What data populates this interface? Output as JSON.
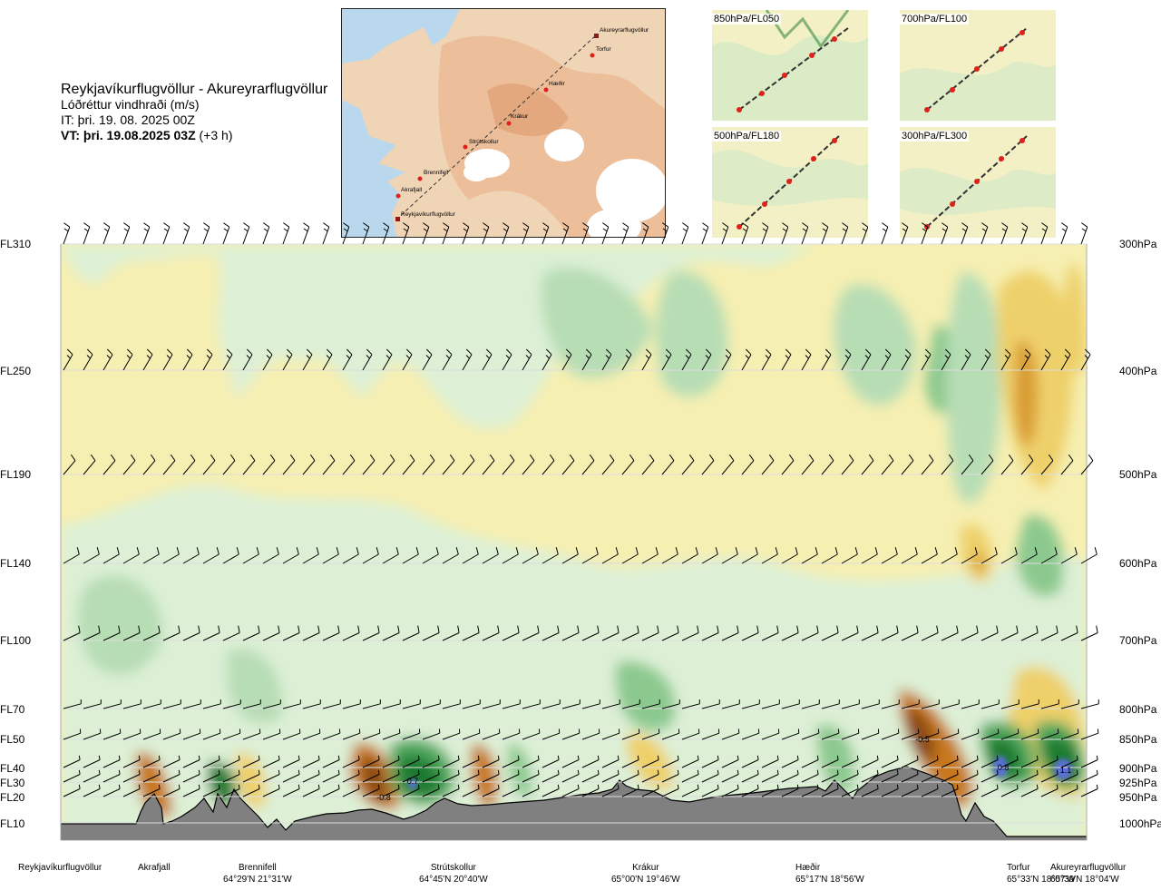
{
  "header": {
    "route": "Reykjavíkurflugvöllur - Akureyrarflugvöllur",
    "parameter": "Lóðréttur vindhraði (m/s)",
    "issue_time": "IT: þri. 19. 08. 2025 00Z",
    "valid_time": "VT: þri. 19.08.2025 03Z",
    "lead": "(+3 h)"
  },
  "map_labels": [
    "Akureyrarflugvöllur",
    "Torfur",
    "Hæðir",
    "Krákur",
    "Strútskollur",
    "Brennifell",
    "Akrafjall",
    "Reykjavíkurflugvöllur"
  ],
  "thumbnails": [
    "850hPa/FL050",
    "700hPa/FL100",
    "500hPa/FL180",
    "300hPa/FL300"
  ],
  "levels": [
    {
      "fl": "FL310",
      "hpa": "300hPa"
    },
    {
      "fl": "FL250",
      "hpa": "400hPa"
    },
    {
      "fl": "FL190",
      "hpa": "500hPa"
    },
    {
      "fl": "FL140",
      "hpa": "600hPa"
    },
    {
      "fl": "FL100",
      "hpa": "700hPa"
    },
    {
      "fl": "FL70",
      "hpa": "800hPa"
    },
    {
      "fl": "FL50",
      "hpa": "850hPa"
    },
    {
      "fl": "FL40",
      "hpa": "900hPa"
    },
    {
      "fl": "FL30",
      "hpa": "925hPa"
    },
    {
      "fl": "FL20",
      "hpa": "950hPa"
    },
    {
      "fl": "FL10",
      "hpa": "1000hPa"
    }
  ],
  "locations": [
    {
      "name": "Reykjavíkurflugvöllur",
      "coord": ""
    },
    {
      "name": "Akrafjall",
      "coord": ""
    },
    {
      "name": "Brennifell",
      "coord": "64°29'N 21°31'W"
    },
    {
      "name": "Strútskollur",
      "coord": "64°45'N 20°40'W"
    },
    {
      "name": "Krákur",
      "coord": "65°00'N 19°46'W"
    },
    {
      "name": "Hæðir",
      "coord": "65°17'N 18°56'W"
    },
    {
      "name": "Torfur",
      "coord": "65°33'N 18°07'W"
    },
    {
      "name": "Akureyrarflugvöllur",
      "coord": "65°39'N 18°04'W"
    }
  ],
  "chart_data": {
    "type": "heatmap",
    "title": "Lóðréttur vindhraði (m/s)",
    "x_categories": [
      "Reykjavíkurflugvöllur",
      "Akrafjall",
      "Brennifell",
      "Strútskollur",
      "Krákur",
      "Hæðir",
      "Torfur",
      "Akureyrarflugvöllur"
    ],
    "y_levels_hpa": [
      1000,
      950,
      925,
      900,
      850,
      800,
      700,
      600,
      500,
      400,
      300
    ],
    "y_levels_fl": [
      "FL10",
      "FL20",
      "FL30",
      "FL40",
      "FL50",
      "FL70",
      "FL100",
      "FL140",
      "FL190",
      "FL250",
      "FL310"
    ],
    "annotations": [
      {
        "value": -0.8,
        "near": "Strútskollur",
        "level_hpa": 950
      },
      {
        "value": 0.7,
        "near": "Strútskollur",
        "level_hpa": 925
      },
      {
        "value": -0.5,
        "near": "Hæðir",
        "level_hpa": 850
      },
      {
        "value": 0.8,
        "near": "Torfur",
        "level_hpa": 900
      },
      {
        "value": 1.1,
        "near": "Akureyrarflugvöllur",
        "level_hpa": 900
      }
    ],
    "colors": {
      "strong_up": "#1a7a2e",
      "up": "#4fa85e",
      "weak_up": "#b7ddb5",
      "very_weak_up": "#ddf0d6",
      "neutral": "#f7f7e0",
      "weak_down": "#f3eeae",
      "down": "#eed06a",
      "strong_down": "#c8781e",
      "very_strong_down": "#8a4a12",
      "max_up": "#5a6fd6",
      "terrain": "#808080"
    }
  }
}
